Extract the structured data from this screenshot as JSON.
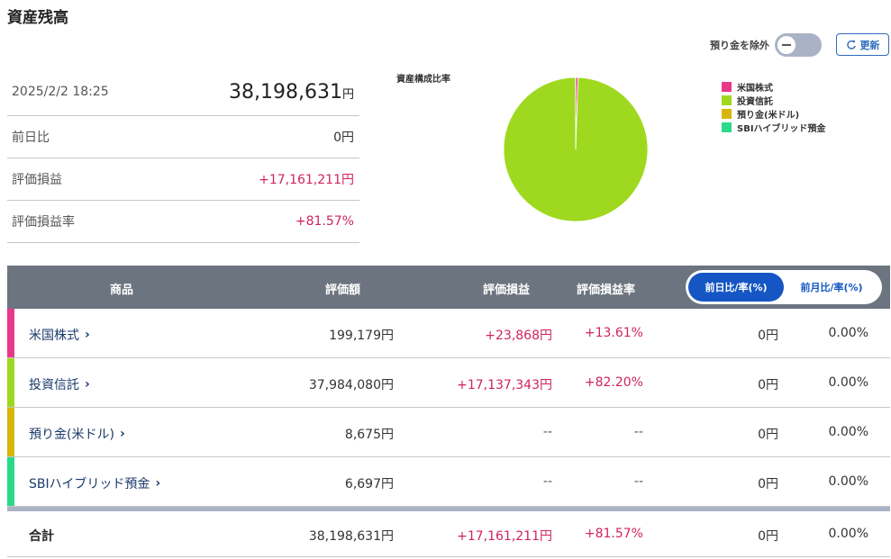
{
  "page": {
    "title": "資産残高"
  },
  "controls": {
    "exclude_deposit_label": "預り金を除外",
    "refresh_label": "更新"
  },
  "summary": {
    "datetime": "2025/2/2 18:25",
    "total": "38,198,631",
    "yen": "円",
    "rows": [
      {
        "label": "前日比",
        "value": "0円"
      },
      {
        "label": "評価損益",
        "value": "+17,161,211円"
      },
      {
        "label": "評価損益率",
        "value": "+81.57%"
      }
    ]
  },
  "chart_data": {
    "type": "pie",
    "title": "資産構成比率",
    "categories": [
      "米国株式",
      "投資信託",
      "預り金(米ドル)",
      "SBIハイブリッド預金"
    ],
    "values": [
      199179,
      37984080,
      8675,
      6697
    ],
    "colors": [
      "#e8388a",
      "#9ed91f",
      "#d7b60b",
      "#2bd98a"
    ]
  },
  "table": {
    "headers": {
      "product": "商品",
      "valuation": "評価額",
      "gain": "評価損益",
      "gain_rate": "評価損益率",
      "seg_day": "前日比/率(%)",
      "seg_month": "前月比/率(%)"
    },
    "rows": [
      {
        "name": "米国株式",
        "valuation": "199,179円",
        "gain": "+23,868円",
        "gain_rate": "+13.61%",
        "day_change": "0円",
        "day_pct": "0.00%",
        "color": "#e8388a"
      },
      {
        "name": "投資信託",
        "valuation": "37,984,080円",
        "gain": "+17,137,343円",
        "gain_rate": "+82.20%",
        "day_change": "0円",
        "day_pct": "0.00%",
        "color": "#9ed91f"
      },
      {
        "name": "預り金(米ドル)",
        "valuation": "8,675円",
        "gain": "--",
        "gain_rate": "--",
        "day_change": "0円",
        "day_pct": "0.00%",
        "color": "#d7b60b"
      },
      {
        "name": "SBIハイブリッド預金",
        "valuation": "6,697円",
        "gain": "--",
        "gain_rate": "--",
        "day_change": "0円",
        "day_pct": "0.00%",
        "color": "#2bd98a"
      }
    ],
    "total": {
      "label": "合計",
      "valuation": "38,198,631円",
      "gain": "+17,161,211円",
      "gain_rate": "+81.57%",
      "day_change": "0円",
      "day_pct": "0.00%"
    },
    "chevron": "›"
  }
}
